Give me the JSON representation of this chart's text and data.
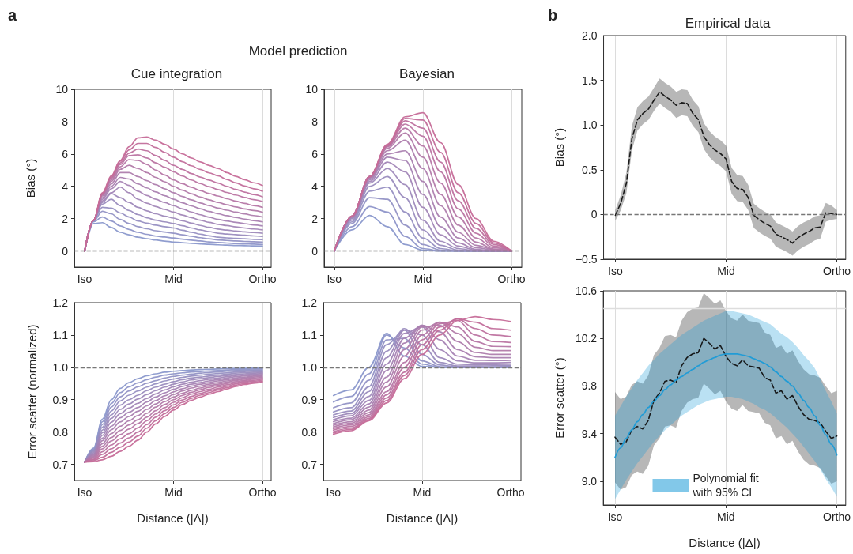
{
  "chart_data": [
    {
      "type": "line",
      "title": "Cue integration",
      "ylabel": "Bias (°)",
      "annotations": [
        "a",
        "Model prediction"
      ],
      "marker": "none",
      "grid": "x",
      "ylim": [
        -1,
        10
      ],
      "yticks": [
        0,
        2,
        4,
        6,
        8,
        10
      ],
      "ref_lines": [
        {
          "axis": "y",
          "value": 0,
          "color": "#777777",
          "line_style": "dashed"
        }
      ],
      "categories": [
        "Iso",
        null,
        null,
        null,
        null,
        null,
        null,
        null,
        null,
        null,
        "Mid",
        null,
        null,
        null,
        null,
        null,
        null,
        null,
        null,
        null,
        "Ortho"
      ],
      "series": [
        {
          "color": "#8a98cc",
          "values": [
            0,
            1.7,
            1.75,
            1.45,
            1.15,
            1.0,
            0.85,
            0.76,
            0.68,
            0.61,
            0.55,
            0.51,
            0.47,
            0.44,
            0.41,
            0.38,
            0.36,
            0.34,
            0.33,
            0.31,
            0.3
          ]
        },
        {
          "color": "#8e95c9",
          "values": [
            0,
            1.8,
            2.1,
            1.85,
            1.55,
            1.33,
            1.15,
            1.03,
            0.92,
            0.86,
            0.8,
            0.73,
            0.67,
            0.62,
            0.56,
            0.52,
            0.49,
            0.46,
            0.44,
            0.42,
            0.4
          ]
        },
        {
          "color": "#9292c5",
          "values": [
            0,
            1.85,
            2.45,
            2.3,
            1.95,
            1.7,
            1.5,
            1.37,
            1.25,
            1.17,
            1.1,
            1.0,
            0.91,
            0.82,
            0.75,
            0.68,
            0.65,
            0.62,
            0.59,
            0.57,
            0.55
          ]
        },
        {
          "color": "#968fc2",
          "values": [
            0,
            1.9,
            2.7,
            2.65,
            2.35,
            2.1,
            1.85,
            1.72,
            1.6,
            1.5,
            1.42,
            1.28,
            1.16,
            1.04,
            0.94,
            0.85,
            0.81,
            0.78,
            0.75,
            0.72,
            0.7
          ]
        },
        {
          "color": "#9a8cbe",
          "values": [
            0,
            1.9,
            2.9,
            3.2,
            2.8,
            2.5,
            2.25,
            2.05,
            1.9,
            1.8,
            1.7,
            1.56,
            1.42,
            1.3,
            1.2,
            1.1,
            1.05,
            1.01,
            0.97,
            0.93,
            0.9
          ]
        },
        {
          "color": "#9e89bb",
          "values": [
            0,
            1.9,
            3.0,
            3.55,
            3.3,
            3.0,
            2.7,
            2.48,
            2.3,
            2.15,
            2.03,
            1.87,
            1.72,
            1.58,
            1.46,
            1.35,
            1.29,
            1.23,
            1.18,
            1.14,
            1.1
          ]
        },
        {
          "color": "#a286b7",
          "values": [
            0,
            1.9,
            3.1,
            3.6,
            3.95,
            3.6,
            3.2,
            2.95,
            2.75,
            2.57,
            2.4,
            2.22,
            2.06,
            1.9,
            1.77,
            1.65,
            1.57,
            1.49,
            1.42,
            1.36,
            1.3
          ]
        },
        {
          "color": "#a683b4",
          "values": [
            0,
            1.9,
            3.2,
            3.85,
            4.3,
            4.05,
            3.7,
            3.43,
            3.2,
            3.0,
            2.8,
            2.6,
            2.41,
            2.24,
            2.09,
            1.95,
            1.85,
            1.77,
            1.69,
            1.61,
            1.55
          ]
        },
        {
          "color": "#aa80b0",
          "values": [
            0,
            1.9,
            3.3,
            4.0,
            4.55,
            4.45,
            4.15,
            3.9,
            3.65,
            3.42,
            3.2,
            2.98,
            2.79,
            2.61,
            2.44,
            2.3,
            2.18,
            2.07,
            1.97,
            1.88,
            1.8
          ]
        },
        {
          "color": "#ae7dad",
          "values": [
            0,
            1.9,
            3.4,
            4.15,
            4.85,
            4.85,
            4.6,
            4.35,
            4.1,
            3.85,
            3.6,
            3.37,
            3.16,
            2.97,
            2.8,
            2.65,
            2.52,
            2.4,
            2.29,
            2.19,
            2.1
          ]
        },
        {
          "color": "#b27aa9",
          "values": [
            0,
            1.9,
            3.45,
            4.3,
            5.05,
            5.3,
            5.1,
            4.85,
            4.55,
            4.28,
            4.0,
            3.76,
            3.54,
            3.34,
            3.16,
            3.0,
            2.86,
            2.72,
            2.6,
            2.5,
            2.4
          ]
        },
        {
          "color": "#b677a6",
          "values": [
            0,
            1.9,
            3.5,
            4.4,
            5.2,
            5.65,
            5.6,
            5.35,
            5.0,
            4.7,
            4.4,
            4.16,
            3.94,
            3.74,
            3.56,
            3.4,
            3.23,
            3.08,
            2.94,
            2.81,
            2.7
          ]
        },
        {
          "color": "#ba74a2",
          "values": [
            0,
            1.9,
            3.5,
            4.5,
            5.35,
            5.9,
            5.95,
            5.75,
            5.45,
            5.18,
            4.9,
            4.64,
            4.39,
            4.17,
            3.98,
            3.8,
            3.62,
            3.46,
            3.31,
            3.17,
            3.05
          ]
        },
        {
          "color": "#be719f",
          "values": [
            0,
            1.9,
            3.55,
            4.55,
            5.45,
            6.05,
            6.3,
            6.2,
            5.9,
            5.6,
            5.3,
            5.04,
            4.79,
            4.57,
            4.38,
            4.2,
            4.0,
            3.81,
            3.64,
            3.49,
            3.35
          ]
        },
        {
          "color": "#c26e9b",
          "values": [
            0,
            1.9,
            3.55,
            4.6,
            5.55,
            6.25,
            6.65,
            6.65,
            6.4,
            6.1,
            5.8,
            5.52,
            5.27,
            5.04,
            4.83,
            4.65,
            4.42,
            4.21,
            4.02,
            3.85,
            3.7
          ]
        },
        {
          "color": "#c66b98",
          "values": [
            0,
            1.9,
            3.6,
            4.65,
            5.6,
            6.45,
            7.0,
            7.05,
            6.85,
            6.6,
            6.3,
            6.01,
            5.75,
            5.51,
            5.29,
            5.1,
            4.85,
            4.62,
            4.41,
            4.22,
            4.05
          ]
        }
      ]
    },
    {
      "type": "line",
      "title": "Bayesian",
      "marker": "none",
      "grid": "x",
      "ylim": [
        -1,
        10
      ],
      "yticks": [
        0,
        2,
        4,
        6,
        8,
        10
      ],
      "ref_lines": [
        {
          "axis": "y",
          "value": 0,
          "color": "#777777",
          "line_style": "dashed"
        }
      ],
      "categories": [
        "Iso",
        null,
        null,
        null,
        null,
        "Mid",
        null,
        null,
        null,
        null,
        "Ortho"
      ],
      "series": [
        {
          "color": "#8a98cc",
          "values": [
            0,
            1.3,
            2.2,
            1.5,
            0.4,
            0.05,
            0,
            0,
            0,
            0,
            0
          ]
        },
        {
          "color": "#8e95c9",
          "values": [
            0,
            1.5,
            2.75,
            2.4,
            0.9,
            0.15,
            0,
            0,
            0,
            0,
            0
          ]
        },
        {
          "color": "#9292c5",
          "values": [
            0,
            1.7,
            3.3,
            3.2,
            1.6,
            0.4,
            0.05,
            0,
            0,
            0,
            0
          ]
        },
        {
          "color": "#968fc2",
          "values": [
            0,
            1.8,
            3.7,
            3.95,
            2.4,
            0.8,
            0.15,
            0,
            0,
            0,
            0
          ]
        },
        {
          "color": "#9a8cbe",
          "values": [
            0,
            1.9,
            4.0,
            4.6,
            3.3,
            1.3,
            0.35,
            0.05,
            0,
            0,
            0
          ]
        },
        {
          "color": "#9e89bb",
          "values": [
            0,
            2.0,
            4.2,
            5.1,
            4.1,
            1.9,
            0.6,
            0.15,
            0,
            0,
            0
          ]
        },
        {
          "color": "#a286b7",
          "values": [
            0,
            2.05,
            4.3,
            5.5,
            4.9,
            2.7,
            1.0,
            0.3,
            0.05,
            0,
            0
          ]
        },
        {
          "color": "#a683b4",
          "values": [
            0,
            2.1,
            4.4,
            5.8,
            5.6,
            3.5,
            1.5,
            0.5,
            0.1,
            0,
            0
          ]
        },
        {
          "color": "#aa80b0",
          "values": [
            0,
            2.1,
            4.5,
            6.0,
            6.2,
            4.3,
            2.1,
            0.8,
            0.2,
            0.05,
            0
          ]
        },
        {
          "color": "#ae7dad",
          "values": [
            0,
            2.15,
            4.55,
            6.2,
            6.85,
            5.1,
            2.8,
            1.15,
            0.35,
            0.08,
            0
          ]
        },
        {
          "color": "#b27aa9",
          "values": [
            0,
            2.15,
            4.6,
            6.35,
            7.3,
            5.8,
            3.5,
            1.6,
            0.55,
            0.12,
            0
          ]
        },
        {
          "color": "#b677a6",
          "values": [
            0,
            2.15,
            4.6,
            6.45,
            7.6,
            6.5,
            4.2,
            2.1,
            0.8,
            0.2,
            0
          ]
        },
        {
          "color": "#ba74a2",
          "values": [
            0,
            2.15,
            4.6,
            6.5,
            7.85,
            7.1,
            4.9,
            2.6,
            1.1,
            0.3,
            0
          ]
        },
        {
          "color": "#be719f",
          "values": [
            0,
            2.15,
            4.6,
            6.55,
            8.05,
            7.6,
            5.5,
            3.1,
            1.4,
            0.4,
            0
          ]
        },
        {
          "color": "#c26e9b",
          "values": [
            0,
            2.15,
            4.6,
            6.55,
            8.2,
            8.1,
            6.1,
            3.6,
            1.7,
            0.5,
            0
          ]
        },
        {
          "color": "#c66b98",
          "values": [
            0,
            2.15,
            4.6,
            6.6,
            8.3,
            8.55,
            6.7,
            4.1,
            2.0,
            0.6,
            0
          ]
        }
      ]
    },
    {
      "type": "line",
      "xlabel": "Distance (|Δ|)",
      "ylabel": "Error scatter (normalized)",
      "marker": "none",
      "grid": "x",
      "ylim": [
        0.65,
        1.2
      ],
      "yticks": [
        0.7,
        0.8,
        0.9,
        {
          "value": 1,
          "label": "1.0"
        },
        1.1,
        1.2
      ],
      "ref_lines": [
        {
          "axis": "y",
          "value": 1,
          "color": "#777777",
          "line_style": "dashed"
        }
      ],
      "categories": [
        "Iso",
        null,
        null,
        null,
        null,
        null,
        null,
        null,
        null,
        null,
        "Mid",
        null,
        null,
        null,
        null,
        null,
        null,
        null,
        null,
        null,
        "Ortho"
      ],
      "series": [
        {
          "color": "#8a98cc",
          "values": [
            0.707,
            0.75,
            0.84,
            0.9,
            0.935,
            0.953,
            0.965,
            0.974,
            0.98,
            0.985,
            0.988,
            0.99,
            0.992,
            0.993,
            0.994,
            0.995,
            0.996,
            0.997,
            0.997,
            0.998,
            0.998
          ]
        },
        {
          "color": "#8e95c9",
          "values": [
            0.707,
            0.747,
            0.832,
            0.888,
            0.922,
            0.94,
            0.952,
            0.962,
            0.97,
            0.976,
            0.98,
            0.983,
            0.986,
            0.987,
            0.989,
            0.99,
            0.992,
            0.993,
            0.994,
            0.995,
            0.995
          ]
        },
        {
          "color": "#9292c5",
          "values": [
            0.707,
            0.744,
            0.823,
            0.877,
            0.909,
            0.927,
            0.94,
            0.951,
            0.959,
            0.967,
            0.972,
            0.976,
            0.979,
            0.982,
            0.984,
            0.986,
            0.988,
            0.99,
            0.99,
            0.992,
            0.992
          ]
        },
        {
          "color": "#968fc2",
          "values": [
            0.707,
            0.742,
            0.815,
            0.865,
            0.896,
            0.914,
            0.927,
            0.939,
            0.949,
            0.958,
            0.964,
            0.969,
            0.973,
            0.976,
            0.979,
            0.981,
            0.983,
            0.986,
            0.987,
            0.989,
            0.989
          ]
        },
        {
          "color": "#9a8cbe",
          "values": [
            0.707,
            0.739,
            0.806,
            0.853,
            0.883,
            0.9,
            0.914,
            0.928,
            0.939,
            0.948,
            0.956,
            0.962,
            0.967,
            0.97,
            0.973,
            0.976,
            0.979,
            0.982,
            0.984,
            0.985,
            0.987
          ]
        },
        {
          "color": "#9e89bb",
          "values": [
            0.707,
            0.736,
            0.798,
            0.842,
            0.87,
            0.887,
            0.902,
            0.916,
            0.928,
            0.939,
            0.948,
            0.955,
            0.961,
            0.965,
            0.968,
            0.972,
            0.975,
            0.978,
            0.98,
            0.982,
            0.984
          ]
        },
        {
          "color": "#a286b7",
          "values": [
            0.707,
            0.733,
            0.79,
            0.83,
            0.857,
            0.874,
            0.889,
            0.904,
            0.918,
            0.93,
            0.94,
            0.948,
            0.954,
            0.959,
            0.963,
            0.967,
            0.971,
            0.975,
            0.977,
            0.979,
            0.981
          ]
        },
        {
          "color": "#a683b4",
          "values": [
            0.707,
            0.73,
            0.781,
            0.818,
            0.844,
            0.861,
            0.876,
            0.893,
            0.908,
            0.921,
            0.932,
            0.941,
            0.948,
            0.953,
            0.958,
            0.962,
            0.967,
            0.971,
            0.974,
            0.976,
            0.978
          ]
        },
        {
          "color": "#aa80b0",
          "values": [
            0.707,
            0.728,
            0.773,
            0.807,
            0.831,
            0.848,
            0.864,
            0.881,
            0.897,
            0.912,
            0.924,
            0.934,
            0.942,
            0.948,
            0.953,
            0.958,
            0.962,
            0.967,
            0.97,
            0.973,
            0.975
          ]
        },
        {
          "color": "#ae7dad",
          "values": [
            0.707,
            0.725,
            0.764,
            0.795,
            0.818,
            0.835,
            0.851,
            0.87,
            0.887,
            0.903,
            0.916,
            0.927,
            0.936,
            0.942,
            0.948,
            0.953,
            0.958,
            0.963,
            0.967,
            0.97,
            0.972
          ]
        },
        {
          "color": "#b27aa9",
          "values": [
            0.707,
            0.722,
            0.756,
            0.783,
            0.805,
            0.822,
            0.838,
            0.858,
            0.877,
            0.894,
            0.908,
            0.92,
            0.929,
            0.936,
            0.943,
            0.948,
            0.954,
            0.96,
            0.964,
            0.967,
            0.969
          ]
        },
        {
          "color": "#b677a6",
          "values": [
            0.707,
            0.719,
            0.748,
            0.772,
            0.792,
            0.809,
            0.826,
            0.846,
            0.866,
            0.885,
            0.9,
            0.913,
            0.923,
            0.931,
            0.938,
            0.944,
            0.95,
            0.956,
            0.96,
            0.964,
            0.966
          ]
        },
        {
          "color": "#ba74a2",
          "values": [
            0.707,
            0.716,
            0.739,
            0.76,
            0.779,
            0.795,
            0.813,
            0.835,
            0.856,
            0.875,
            0.892,
            0.906,
            0.917,
            0.925,
            0.932,
            0.939,
            0.946,
            0.952,
            0.957,
            0.96,
            0.964
          ]
        },
        {
          "color": "#be719f",
          "values": [
            0.707,
            0.714,
            0.731,
            0.748,
            0.766,
            0.782,
            0.8,
            0.823,
            0.846,
            0.866,
            0.884,
            0.899,
            0.91,
            0.919,
            0.927,
            0.934,
            0.941,
            0.949,
            0.954,
            0.957,
            0.961
          ]
        },
        {
          "color": "#c26e9b",
          "values": [
            0.707,
            0.711,
            0.722,
            0.737,
            0.753,
            0.769,
            0.788,
            0.812,
            0.835,
            0.857,
            0.876,
            0.892,
            0.904,
            0.914,
            0.922,
            0.93,
            0.937,
            0.945,
            0.95,
            0.954,
            0.958
          ]
        },
        {
          "color": "#c66b98",
          "values": [
            0.707,
            0.708,
            0.714,
            0.725,
            0.74,
            0.756,
            0.775,
            0.8,
            0.825,
            0.848,
            0.868,
            0.885,
            0.898,
            0.908,
            0.917,
            0.925,
            0.933,
            0.941,
            0.947,
            0.951,
            0.955
          ]
        }
      ]
    },
    {
      "type": "line",
      "xlabel": "Distance (|Δ|)",
      "marker": "none",
      "grid": "x",
      "ylim": [
        0.65,
        1.2
      ],
      "yticks": [
        0.7,
        0.8,
        0.9,
        {
          "value": 1,
          "label": "1.0"
        },
        1.1,
        1.2
      ],
      "ref_lines": [
        {
          "axis": "y",
          "value": 1,
          "color": "#777777",
          "line_style": "dashed"
        }
      ],
      "categories": [
        "Iso",
        null,
        null,
        null,
        null,
        "Mid",
        null,
        null,
        null,
        null,
        "Ortho"
      ],
      "series": [
        {
          "color": "#8a98cc",
          "values": [
            0.913,
            0.93,
            1.0,
            1.105,
            1.035,
            1.003,
            1.0,
            1.0,
            1.0,
            1.0,
            1.0
          ]
        },
        {
          "color": "#8e95c9",
          "values": [
            0.893,
            0.91,
            0.98,
            1.1,
            1.06,
            1.01,
            1.0,
            1.0,
            1.0,
            1.0,
            1.0
          ]
        },
        {
          "color": "#9292c5",
          "values": [
            0.875,
            0.89,
            0.96,
            1.085,
            1.09,
            1.02,
            1.002,
            1.0,
            1.0,
            1.0,
            1.001
          ]
        },
        {
          "color": "#968fc2",
          "values": [
            0.862,
            0.875,
            0.94,
            1.07,
            1.115,
            1.04,
            1.007,
            1.001,
            1.0,
            1.002,
            1.003
          ]
        },
        {
          "color": "#9a8cbe",
          "values": [
            0.853,
            0.865,
            0.925,
            1.05,
            1.12,
            1.07,
            1.015,
            1.004,
            1.004,
            1.005,
            1.006
          ]
        },
        {
          "color": "#9e89bb",
          "values": [
            0.845,
            0.857,
            0.91,
            1.03,
            1.115,
            1.1,
            1.03,
            1.01,
            1.008,
            1.009,
            1.01
          ]
        },
        {
          "color": "#a286b7",
          "values": [
            0.838,
            0.85,
            0.898,
            1.01,
            1.105,
            1.125,
            1.055,
            1.02,
            1.014,
            1.014,
            1.015
          ]
        },
        {
          "color": "#a683b4",
          "values": [
            0.832,
            0.843,
            0.887,
            0.99,
            1.09,
            1.13,
            1.085,
            1.035,
            1.022,
            1.021,
            1.022
          ]
        },
        {
          "color": "#aa80b0",
          "values": [
            0.826,
            0.838,
            0.877,
            0.97,
            1.075,
            1.13,
            1.11,
            1.055,
            1.033,
            1.03,
            1.03
          ]
        },
        {
          "color": "#ae7dad",
          "values": [
            0.821,
            0.832,
            0.868,
            0.955,
            1.055,
            1.125,
            1.13,
            1.08,
            1.046,
            1.04,
            1.04
          ]
        },
        {
          "color": "#b27aa9",
          "values": [
            0.816,
            0.827,
            0.86,
            0.94,
            1.035,
            1.115,
            1.14,
            1.105,
            1.062,
            1.052,
            1.052
          ]
        },
        {
          "color": "#b677a6",
          "values": [
            0.811,
            0.822,
            0.853,
            0.925,
            1.015,
            1.1,
            1.14,
            1.125,
            1.08,
            1.065,
            1.064
          ]
        },
        {
          "color": "#ba74a2",
          "values": [
            0.806,
            0.817,
            0.847,
            0.915,
            1.0,
            1.085,
            1.135,
            1.145,
            1.1,
            1.08,
            1.077
          ]
        },
        {
          "color": "#be719f",
          "values": [
            0.801,
            0.812,
            0.842,
            0.905,
            0.985,
            1.07,
            1.125,
            1.15,
            1.12,
            1.1,
            1.095
          ]
        },
        {
          "color": "#c26e9b",
          "values": [
            0.797,
            0.808,
            0.838,
            0.897,
            0.975,
            1.055,
            1.115,
            1.15,
            1.14,
            1.12,
            1.115
          ]
        },
        {
          "color": "#c66b98",
          "values": [
            0.793,
            0.804,
            0.835,
            0.89,
            0.965,
            1.04,
            1.1,
            1.145,
            1.157,
            1.148,
            1.142
          ]
        }
      ]
    },
    {
      "type": "line",
      "title": "Empirical data",
      "ylabel": "Bias (°)",
      "annotations": [
        "b"
      ],
      "marker": "none",
      "grid": "x",
      "ylim": [
        -0.5,
        2.0
      ],
      "yticks": [
        {
          "value": -0.5,
          "label": "−0.5"
        },
        0,
        0.5,
        {
          "value": 1,
          "label": "1.0"
        },
        1.5,
        {
          "value": 2,
          "label": "2.0"
        }
      ],
      "ref_lines": [
        {
          "axis": "y",
          "value": 0,
          "color": "#777777",
          "line_style": "dashed"
        }
      ],
      "categories": [
        "Iso",
        null,
        null,
        null,
        null,
        null,
        null,
        null,
        null,
        null,
        null,
        null,
        null,
        null,
        null,
        null,
        null,
        null,
        null,
        null,
        "Mid",
        null,
        null,
        null,
        null,
        null,
        null,
        null,
        null,
        null,
        null,
        null,
        null,
        null,
        null,
        null,
        null,
        null,
        null,
        null,
        "Ortho"
      ],
      "series": [
        {
          "color": "#111111",
          "line_style": "dashed",
          "values": [
            -0.01,
            0.13,
            0.35,
            0.85,
            1.06,
            1.13,
            1.18,
            1.28,
            1.37,
            1.32,
            1.28,
            1.22,
            1.25,
            1.24,
            1.13,
            1.06,
            0.87,
            0.78,
            0.72,
            0.68,
            0.62,
            0.37,
            0.29,
            0.28,
            0.19,
            -0.01,
            -0.06,
            -0.1,
            -0.13,
            -0.22,
            -0.25,
            -0.28,
            -0.32,
            -0.26,
            -0.22,
            -0.19,
            -0.15,
            -0.14,
            0.02,
            0.01,
            0
          ],
          "lower": [
            -0.07,
            0.05,
            0.24,
            0.72,
            0.94,
            1.01,
            1.06,
            1.16,
            1.24,
            1.19,
            1.15,
            1.08,
            1.11,
            1.1,
            0.99,
            0.92,
            0.73,
            0.64,
            0.58,
            0.54,
            0.48,
            0.23,
            0.15,
            0.14,
            0.05,
            -0.15,
            -0.2,
            -0.24,
            -0.27,
            -0.36,
            -0.39,
            -0.42,
            -0.46,
            -0.4,
            -0.36,
            -0.33,
            -0.29,
            -0.27,
            -0.08,
            -0.06,
            -0.05
          ],
          "upper": [
            0.05,
            0.22,
            0.47,
            0.99,
            1.2,
            1.27,
            1.32,
            1.42,
            1.52,
            1.47,
            1.43,
            1.37,
            1.4,
            1.39,
            1.28,
            1.21,
            1.02,
            0.93,
            0.87,
            0.83,
            0.77,
            0.52,
            0.44,
            0.43,
            0.33,
            0.12,
            0.07,
            0.03,
            0,
            -0.09,
            -0.12,
            -0.15,
            -0.19,
            -0.13,
            -0.09,
            -0.06,
            -0.02,
            -0.01,
            0.13,
            0.1,
            0.05
          ]
        }
      ]
    },
    {
      "type": "line",
      "xlabel": "Distance (|Δ|)",
      "ylabel": "Error scatter (°)",
      "marker": "none",
      "grid": "x",
      "legend": "bottom",
      "ylim": [
        8.8,
        10.6
      ],
      "yticks": [
        {
          "value": 9,
          "label": "9.0"
        },
        9.4,
        9.8,
        10.2,
        10.6
      ],
      "ref_lines": [
        {
          "axis": "y",
          "value": 10.45,
          "color": "#dddddd",
          "line_style": "solid"
        }
      ],
      "categories": [
        "Iso",
        null,
        null,
        null,
        null,
        null,
        null,
        null,
        null,
        null,
        null,
        null,
        null,
        null,
        null,
        null,
        null,
        null,
        null,
        null,
        "Mid",
        null,
        null,
        null,
        null,
        null,
        null,
        null,
        null,
        null,
        null,
        null,
        null,
        null,
        null,
        null,
        null,
        null,
        null,
        null,
        "Ortho"
      ],
      "series": [
        {
          "color": "#111111",
          "line_style": "dashed",
          "values": [
            9.37,
            9.31,
            9.33,
            9.43,
            9.46,
            9.44,
            9.51,
            9.68,
            9.74,
            9.84,
            9.85,
            9.83,
            9.97,
            10.04,
            10.07,
            10.08,
            10.2,
            10.16,
            10.11,
            10.14,
            10.05,
            9.99,
            9.97,
            10.02,
            9.97,
            9.96,
            9.95,
            9.87,
            9.85,
            9.74,
            9.76,
            9.69,
            9.72,
            9.63,
            9.56,
            9.52,
            9.51,
            9.49,
            9.42,
            9.36,
            9.38
          ],
          "lower": [
            8.99,
            8.93,
            8.95,
            9.05,
            9.08,
            9.06,
            9.13,
            9.3,
            9.36,
            9.46,
            9.47,
            9.45,
            9.59,
            9.66,
            9.69,
            9.7,
            9.82,
            9.78,
            9.73,
            9.76,
            9.67,
            9.61,
            9.59,
            9.64,
            9.59,
            9.58,
            9.57,
            9.49,
            9.47,
            9.36,
            9.38,
            9.31,
            9.34,
            9.25,
            9.18,
            9.14,
            9.13,
            9.11,
            9.04,
            8.98,
            9.0
          ],
          "upper": [
            9.75,
            9.69,
            9.71,
            9.81,
            9.84,
            9.82,
            9.89,
            10.06,
            10.12,
            10.22,
            10.23,
            10.21,
            10.35,
            10.42,
            10.45,
            10.46,
            10.58,
            10.54,
            10.49,
            10.52,
            10.43,
            10.37,
            10.35,
            10.4,
            10.35,
            10.34,
            10.33,
            10.25,
            10.23,
            10.12,
            10.14,
            10.07,
            10.1,
            10.01,
            9.94,
            9.9,
            9.89,
            9.87,
            9.8,
            9.74,
            9.76
          ]
        },
        {
          "name": "Polynomial fit with 95% CI",
          "color": "#1b9bd7",
          "line_style": "solid",
          "values": [
            9.2,
            9.28,
            9.36,
            9.43,
            9.5,
            9.56,
            9.62,
            9.67,
            9.72,
            9.77,
            9.81,
            9.85,
            9.88,
            9.91,
            9.94,
            9.97,
            10.0,
            10.02,
            10.04,
            10.06,
            10.07,
            10.07,
            10.07,
            10.06,
            10.05,
            10.03,
            10.01,
            9.99,
            9.96,
            9.92,
            9.88,
            9.84,
            9.8,
            9.74,
            9.68,
            9.62,
            9.55,
            9.47,
            9.39,
            9.31,
            9.22
          ],
          "lower": [
            8.85,
            8.93,
            9.01,
            9.08,
            9.15,
            9.21,
            9.27,
            9.33,
            9.38,
            9.43,
            9.47,
            9.51,
            9.55,
            9.58,
            9.61,
            9.64,
            9.66,
            9.68,
            9.69,
            9.7,
            9.71,
            9.71,
            9.7,
            9.69,
            9.67,
            9.65,
            9.62,
            9.6,
            9.57,
            9.53,
            9.49,
            9.45,
            9.4,
            9.35,
            9.29,
            9.23,
            9.17,
            9.1,
            9.02,
            8.95,
            8.87
          ],
          "upper": [
            9.55,
            9.63,
            9.71,
            9.78,
            9.85,
            9.91,
            9.97,
            10.02,
            10.07,
            10.11,
            10.15,
            10.19,
            10.23,
            10.26,
            10.29,
            10.32,
            10.35,
            10.37,
            10.39,
            10.41,
            10.43,
            10.43,
            10.42,
            10.41,
            10.4,
            10.38,
            10.36,
            10.34,
            10.32,
            10.28,
            10.24,
            10.21,
            10.17,
            10.12,
            10.06,
            10.01,
            9.95,
            9.86,
            9.76,
            9.67,
            9.57
          ]
        }
      ]
    }
  ]
}
